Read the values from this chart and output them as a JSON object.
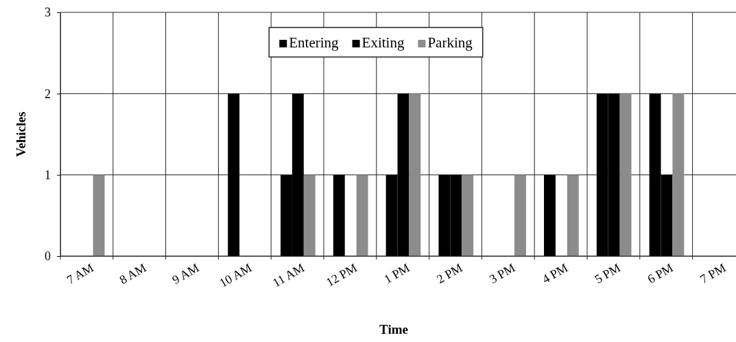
{
  "chart_data": {
    "type": "bar",
    "xlabel": "Time",
    "ylabel": "Vehicles",
    "categories": [
      "7 AM",
      "8 AM",
      "9 AM",
      "10 AM",
      "11 AM",
      "12 PM",
      "1 PM",
      "2 PM",
      "3 PM",
      "4 PM",
      "5 PM",
      "6 PM",
      "7 PM"
    ],
    "series": [
      {
        "name": "Entering",
        "color": "#000000",
        "values": [
          0,
          0,
          0,
          2,
          1,
          1,
          1,
          1,
          0,
          1,
          2,
          2,
          0
        ]
      },
      {
        "name": "Exiting",
        "color": "#000000",
        "values": [
          0,
          0,
          0,
          0,
          2,
          0,
          2,
          1,
          0,
          0,
          2,
          1,
          0
        ]
      },
      {
        "name": "Parking",
        "color": "#8c8c8c",
        "values": [
          1,
          0,
          0,
          0,
          1,
          1,
          2,
          1,
          1,
          1,
          2,
          2,
          0
        ]
      }
    ],
    "ylim": [
      0,
      3
    ],
    "yticks": [
      0,
      1,
      2,
      3
    ],
    "grid": true,
    "legend": "top"
  }
}
